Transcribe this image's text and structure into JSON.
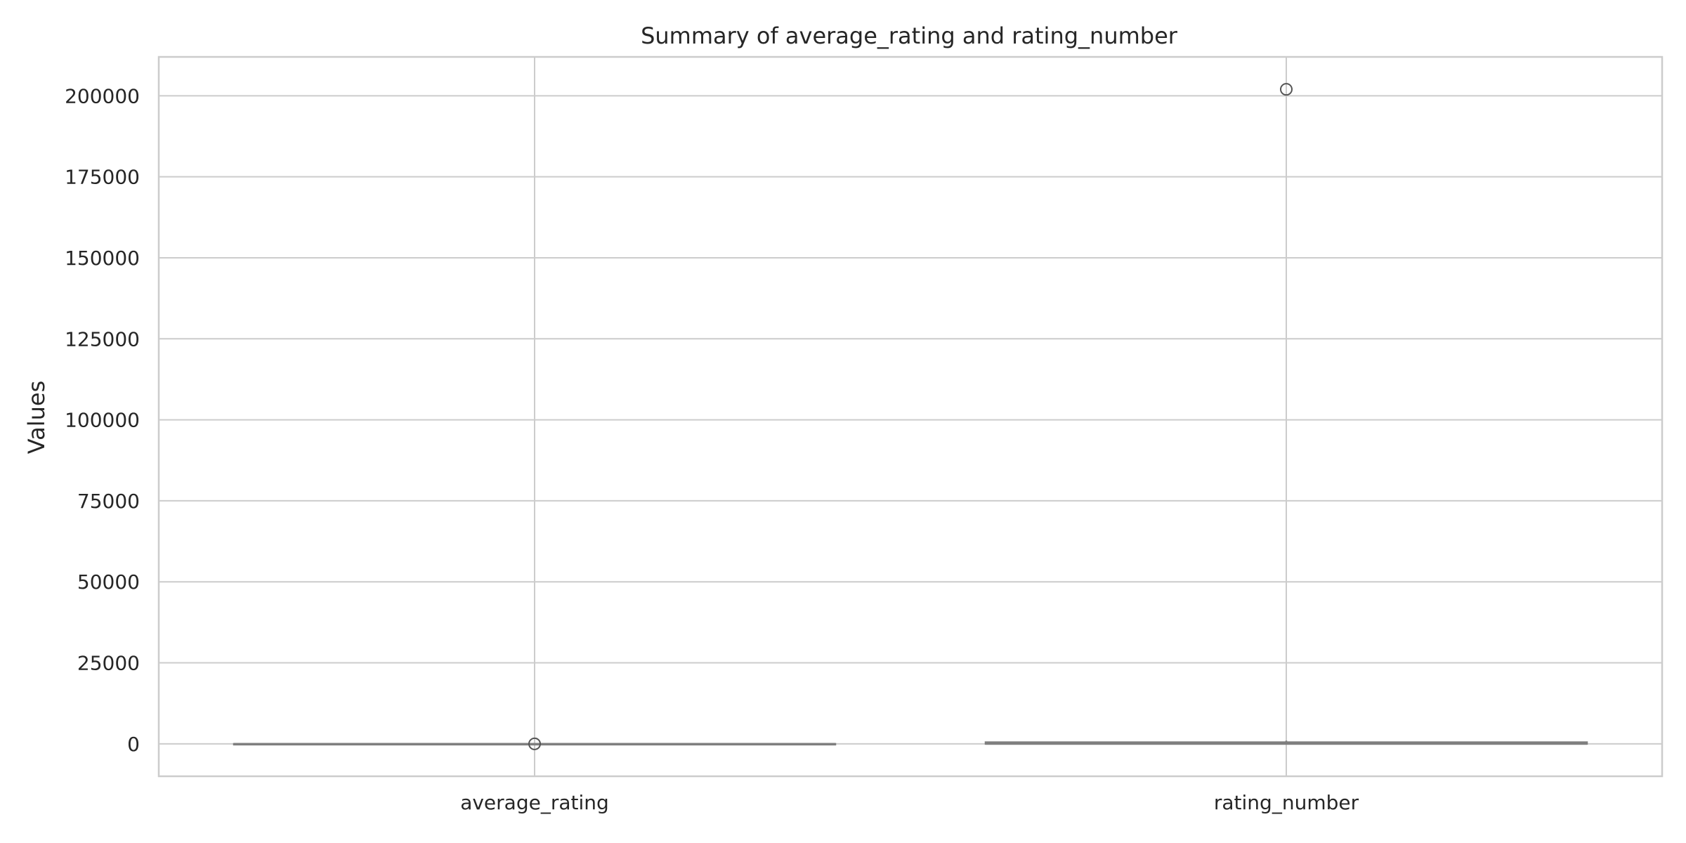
{
  "chart_data": {
    "type": "box",
    "title": "Summary of average_rating and rating_number",
    "xlabel": "",
    "ylabel": "Values",
    "categories": [
      "average_rating",
      "rating_number"
    ],
    "ylim": [
      -10000,
      212000
    ],
    "yticks": [
      0,
      25000,
      50000,
      75000,
      100000,
      125000,
      150000,
      175000,
      200000
    ],
    "grid": true,
    "boxes": [
      {
        "category": "average_rating",
        "min": 0,
        "q1": 0,
        "median": 0,
        "q3": 0,
        "max": 0,
        "outliers": [
          0
        ]
      },
      {
        "category": "rating_number",
        "min": 0,
        "q1": 0,
        "median": 0,
        "q3": 500,
        "max": 1000,
        "outliers": [
          202000
        ]
      }
    ],
    "colors": {
      "grid": "#cccccc",
      "axes": "#cccccc",
      "box_line": "#7f7f7f",
      "text": "#262626"
    }
  }
}
